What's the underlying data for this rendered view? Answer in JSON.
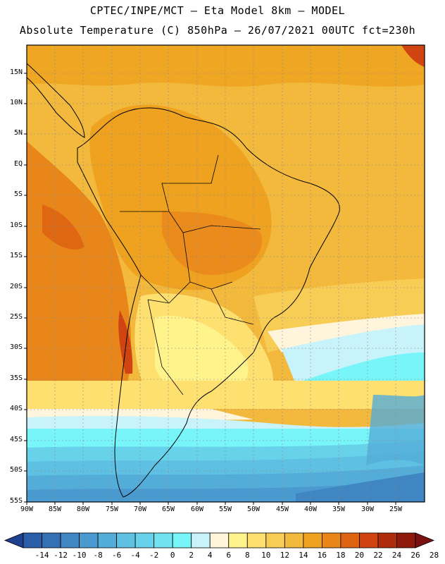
{
  "header": {
    "line1": "CPTEC/INPE/MCT –  Eta Model 8km – MODEL",
    "line2": "Absolute Temperature (C) 850hPa – 26/07/2021 00UTC fct=230h"
  },
  "map": {
    "lat_labels": [
      "15N",
      "10N",
      "5N",
      "EQ",
      "5S",
      "10S",
      "15S",
      "20S",
      "25S",
      "30S",
      "35S",
      "40S",
      "45S",
      "50S",
      "55S"
    ],
    "lon_labels": [
      "90W",
      "85W",
      "80W",
      "75W",
      "70W",
      "65W",
      "60W",
      "55W",
      "50W",
      "45W",
      "40W",
      "35W",
      "30W",
      "25W"
    ],
    "lat_range": [
      -55,
      19
    ],
    "lon_range": [
      -90,
      -20
    ],
    "grid": true
  },
  "colorbar": {
    "labels": [
      "-14",
      "-12",
      "-10",
      "-8",
      "-6",
      "-4",
      "-2",
      "0",
      "2",
      "4",
      "6",
      "8",
      "10",
      "12",
      "14",
      "16",
      "18",
      "20",
      "22",
      "24",
      "26",
      "28"
    ],
    "colors": [
      "#1f3f8f",
      "#2a5ea8",
      "#3570b5",
      "#3f86c3",
      "#4a9ad0",
      "#54add8",
      "#5ec0e2",
      "#68d2ea",
      "#70e3f0",
      "#78f5f8",
      "#c8f3fb",
      "#fff5dc",
      "#fff38c",
      "#fde070",
      "#f8cd55",
      "#f2b93c",
      "#eea21f",
      "#e8861a",
      "#de6412",
      "#cf4410",
      "#b02a0c",
      "#8d1a0a",
      "#7a1010"
    ]
  }
}
